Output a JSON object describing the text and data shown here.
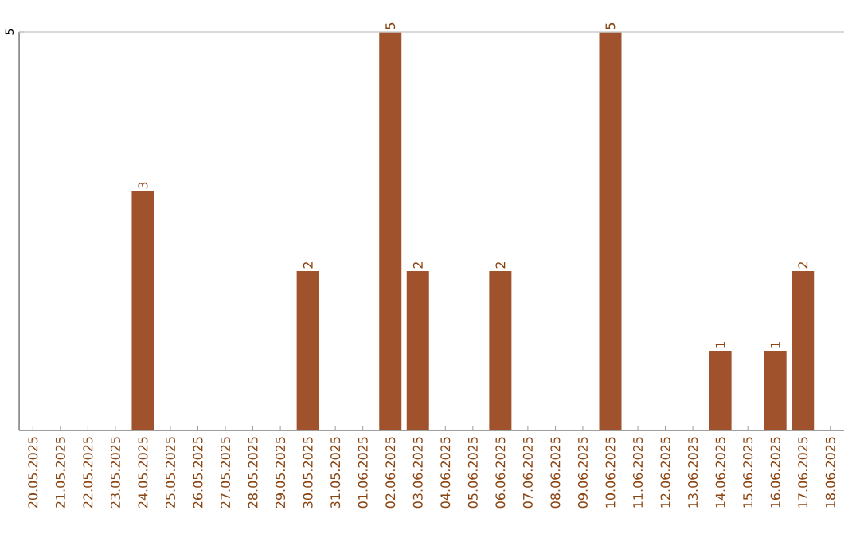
{
  "chart_data": {
    "type": "bar",
    "categories": [
      "20.05.2025",
      "21.05.2025",
      "22.05.2025",
      "23.05.2025",
      "24.05.2025",
      "25.05.2025",
      "26.05.2025",
      "27.05.2025",
      "28.05.2025",
      "29.05.2025",
      "30.05.2025",
      "31.05.2025",
      "01.06.2025",
      "02.06.2025",
      "03.06.2025",
      "04.06.2025",
      "05.06.2025",
      "06.06.2025",
      "07.06.2025",
      "08.06.2025",
      "09.06.2025",
      "10.06.2025",
      "11.06.2025",
      "12.06.2025",
      "13.06.2025",
      "14.06.2025",
      "15.06.2025",
      "16.06.2025",
      "17.06.2025",
      "18.06.2025"
    ],
    "values": [
      0,
      0,
      0,
      0,
      3,
      0,
      0,
      0,
      0,
      0,
      2,
      0,
      0,
      5,
      2,
      0,
      0,
      2,
      0,
      0,
      0,
      5,
      0,
      0,
      0,
      1,
      0,
      1,
      2,
      0
    ],
    "value_labels": [
      null,
      null,
      null,
      null,
      "3",
      null,
      null,
      null,
      null,
      null,
      "2",
      null,
      null,
      "5",
      "2",
      null,
      null,
      "2",
      null,
      null,
      null,
      "5",
      null,
      null,
      null,
      "1",
      null,
      "1",
      "2",
      null
    ],
    "color": "#a0522d",
    "ylim": [
      0,
      5
    ],
    "yticks": [
      5
    ],
    "ref_lines": [
      {
        "axis": "y",
        "value": 5,
        "color": "#cccccc"
      }
    ]
  }
}
